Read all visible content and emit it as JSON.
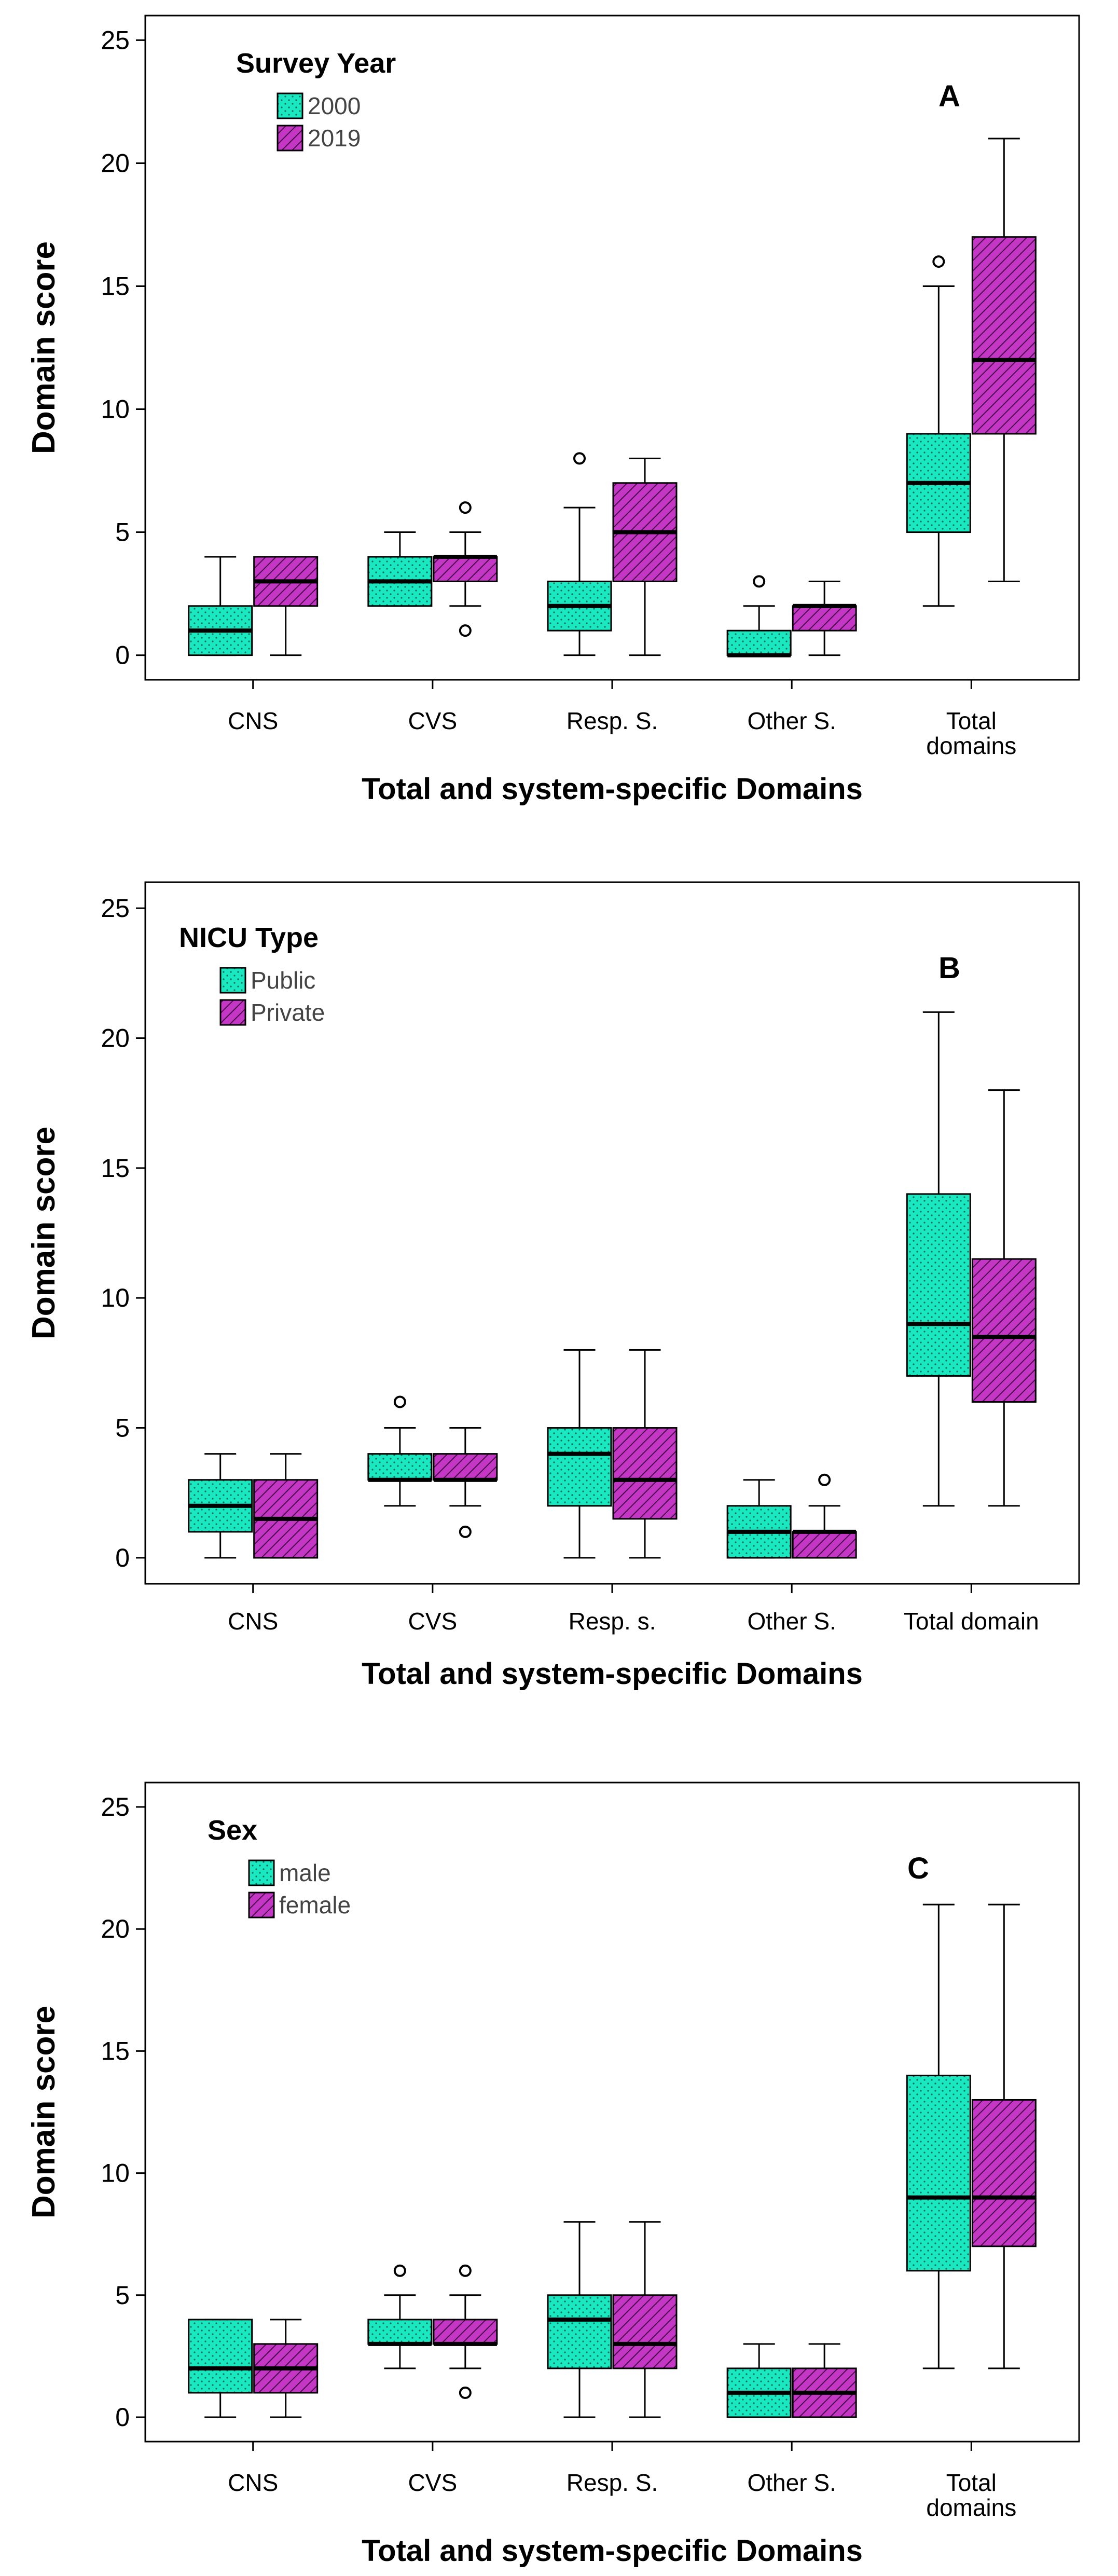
{
  "colors": {
    "teal": "#19e8c0",
    "magenta": "#c436c4",
    "stroke": "#000000"
  },
  "chart_data": [
    {
      "type": "box",
      "panel_letter": "A",
      "legend_title": "Survey Year",
      "series": [
        {
          "name": "2000",
          "boxes": [
            {
              "min": 0,
              "q1": 0,
              "median": 1,
              "q3": 2,
              "max": 4,
              "outliers": []
            },
            {
              "min": 2,
              "q1": 2,
              "median": 3,
              "q3": 4,
              "max": 5,
              "outliers": []
            },
            {
              "min": 0,
              "q1": 1,
              "median": 2,
              "q3": 3,
              "max": 6,
              "outliers": [
                8
              ]
            },
            {
              "min": 0,
              "q1": 0,
              "median": 0,
              "q3": 1,
              "max": 2,
              "outliers": [
                3
              ]
            },
            {
              "min": 2,
              "q1": 5,
              "median": 7,
              "q3": 9,
              "max": 15,
              "outliers": [
                16
              ]
            }
          ]
        },
        {
          "name": "2019",
          "boxes": [
            {
              "min": 0,
              "q1": 2,
              "median": 3,
              "q3": 4,
              "max": 4,
              "outliers": []
            },
            {
              "min": 2,
              "q1": 3,
              "median": 4,
              "q3": 4,
              "max": 5,
              "outliers": [
                1,
                6
              ]
            },
            {
              "min": 0,
              "q1": 3,
              "median": 5,
              "q3": 7,
              "max": 8,
              "outliers": []
            },
            {
              "min": 0,
              "q1": 1,
              "median": 2,
              "q3": 2,
              "max": 3,
              "outliers": []
            },
            {
              "min": 3,
              "q1": 9,
              "median": 12,
              "q3": 17,
              "max": 21,
              "outliers": []
            }
          ]
        }
      ],
      "categories": [
        "CNS",
        "CVS",
        "Resp. S.",
        "Other S.",
        "Total\ndomains"
      ],
      "xlabel": "Total and system-specific Domains",
      "ylabel": "Domain score",
      "ylim": [
        -1,
        26
      ],
      "yticks": [
        0,
        5,
        10,
        15,
        20,
        25
      ]
    },
    {
      "type": "box",
      "panel_letter": "B",
      "legend_title": "NICU Type",
      "series": [
        {
          "name": "Public",
          "boxes": [
            {
              "min": 0,
              "q1": 1,
              "median": 2,
              "q3": 3,
              "max": 4,
              "outliers": []
            },
            {
              "min": 2,
              "q1": 3,
              "median": 3,
              "q3": 4,
              "max": 5,
              "outliers": [
                6
              ]
            },
            {
              "min": 0,
              "q1": 2,
              "median": 4,
              "q3": 5,
              "max": 8,
              "outliers": []
            },
            {
              "min": 0,
              "q1": 0,
              "median": 1,
              "q3": 2,
              "max": 3,
              "outliers": []
            },
            {
              "min": 2,
              "q1": 7,
              "median": 9,
              "q3": 14,
              "max": 21,
              "outliers": []
            }
          ]
        },
        {
          "name": "Private",
          "boxes": [
            {
              "min": 0,
              "q1": 0,
              "median": 1.5,
              "q3": 3,
              "max": 4,
              "outliers": []
            },
            {
              "min": 2,
              "q1": 3,
              "median": 3,
              "q3": 4,
              "max": 5,
              "outliers": [
                1
              ]
            },
            {
              "min": 0,
              "q1": 1.5,
              "median": 3,
              "q3": 5,
              "max": 8,
              "outliers": []
            },
            {
              "min": 0,
              "q1": 0,
              "median": 1,
              "q3": 1,
              "max": 2,
              "outliers": [
                3
              ]
            },
            {
              "min": 2,
              "q1": 6,
              "median": 8.5,
              "q3": 11.5,
              "max": 18,
              "outliers": []
            }
          ]
        }
      ],
      "categories": [
        "CNS",
        "CVS",
        "Resp. s.",
        "Other S.",
        "Total domain"
      ],
      "xlabel": "Total and system-specific Domains",
      "ylabel": "Domain score",
      "ylim": [
        -1,
        26
      ],
      "yticks": [
        0,
        5,
        10,
        15,
        20,
        25
      ]
    },
    {
      "type": "box",
      "panel_letter": "C",
      "legend_title": "Sex",
      "series": [
        {
          "name": "male",
          "boxes": [
            {
              "min": 0,
              "q1": 1,
              "median": 2,
              "q3": 4,
              "max": 4,
              "outliers": []
            },
            {
              "min": 2,
              "q1": 3,
              "median": 3,
              "q3": 4,
              "max": 5,
              "outliers": [
                6
              ]
            },
            {
              "min": 0,
              "q1": 2,
              "median": 4,
              "q3": 5,
              "max": 8,
              "outliers": []
            },
            {
              "min": 0,
              "q1": 0,
              "median": 1,
              "q3": 2,
              "max": 3,
              "outliers": []
            },
            {
              "min": 2,
              "q1": 6,
              "median": 9,
              "q3": 14,
              "max": 21,
              "outliers": []
            }
          ]
        },
        {
          "name": "female",
          "boxes": [
            {
              "min": 0,
              "q1": 1,
              "median": 2,
              "q3": 3,
              "max": 4,
              "outliers": []
            },
            {
              "min": 2,
              "q1": 3,
              "median": 3,
              "q3": 4,
              "max": 5,
              "outliers": [
                1,
                6
              ]
            },
            {
              "min": 0,
              "q1": 2,
              "median": 3,
              "q3": 5,
              "max": 8,
              "outliers": []
            },
            {
              "min": 0,
              "q1": 0,
              "median": 1,
              "q3": 2,
              "max": 3,
              "outliers": []
            },
            {
              "min": 2,
              "q1": 7,
              "median": 9,
              "q3": 13,
              "max": 21,
              "outliers": []
            }
          ]
        }
      ],
      "categories": [
        "CNS",
        "CVS",
        "Resp. S.",
        "Other S.",
        "Total\ndomains"
      ],
      "xlabel": "Total and system-specific Domains",
      "ylabel": "Domain score",
      "ylim": [
        -1,
        26
      ],
      "yticks": [
        0,
        5,
        10,
        15,
        20,
        25
      ]
    }
  ]
}
